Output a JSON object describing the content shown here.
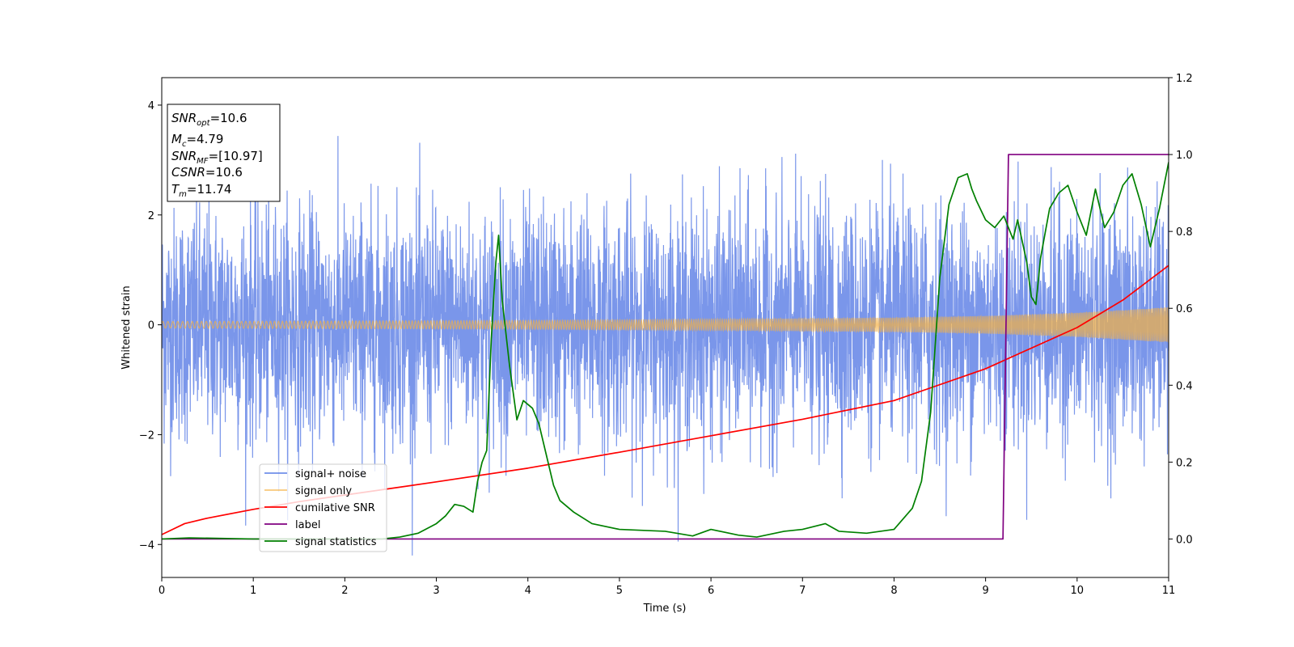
{
  "chart_data": {
    "type": "line",
    "xlabel": "Time (s)",
    "ylabel": "Whitened strain",
    "xlim": [
      0,
      11
    ],
    "ylim_left": [
      -4.6,
      4.5
    ],
    "ylim_right": [
      -0.1,
      1.2
    ],
    "x_ticks": [
      0,
      1,
      2,
      3,
      4,
      5,
      6,
      7,
      8,
      9,
      10,
      11
    ],
    "y_ticks_left": [
      -4,
      -2,
      0,
      2,
      4
    ],
    "y_ticks_right": [
      0.0,
      0.2,
      0.4,
      0.6,
      0.8,
      1.0,
      1.2
    ],
    "y_tick_labels_right": [
      "0.0",
      "0.2",
      "0.4",
      "0.6",
      "0.8",
      "1.0",
      "1.2"
    ],
    "grid": false,
    "legend_position": "bottom-left",
    "annotation": {
      "lines": [
        {
          "main": "SNR",
          "sub": "opt",
          "rest": "=10.6"
        },
        {
          "main": "M",
          "sub": "c",
          "rest": "=4.79"
        },
        {
          "main": "SNR",
          "sub": "MF",
          "rest": "=[10.97]"
        },
        {
          "main": "CSNR",
          "sub": "",
          "rest": "=10.6"
        },
        {
          "main": "T",
          "sub": "m",
          "rest": "=11.74"
        }
      ]
    },
    "series": [
      {
        "name": "signal+ noise",
        "color": "#4169e1",
        "axis": "left",
        "description_values": {
          "typical_envelope": [
            -2.2,
            2.2
          ],
          "spikes_range": [
            -4.2,
            4.0
          ]
        }
      },
      {
        "name": "signal only",
        "color": "#f5b041",
        "axis": "left",
        "envelope": {
          "x": [
            0,
            2,
            4,
            6,
            8,
            9,
            10,
            11
          ],
          "amp": [
            0.06,
            0.07,
            0.08,
            0.1,
            0.13,
            0.16,
            0.22,
            0.32
          ]
        }
      },
      {
        "name": "cumilative SNR",
        "color": "#ff0000",
        "axis": "left",
        "x": [
          0,
          0.25,
          0.5,
          1,
          1.5,
          2,
          3,
          4,
          5,
          6,
          7,
          8,
          9,
          10,
          10.5,
          11
        ],
        "y": [
          -3.82,
          -3.62,
          -3.52,
          -3.36,
          -3.22,
          -3.1,
          -2.86,
          -2.61,
          -2.32,
          -2.02,
          -1.72,
          -1.38,
          -0.8,
          -0.05,
          0.45,
          1.08
        ]
      },
      {
        "name": "label",
        "color": "#800080",
        "axis": "right",
        "x": [
          0,
          9.19,
          9.25,
          11
        ],
        "y": [
          0,
          0,
          1,
          1
        ]
      },
      {
        "name": "signal statistics",
        "color": "#008000",
        "axis": "right",
        "x": [
          0,
          0.3,
          1,
          2,
          2.4,
          2.6,
          2.8,
          3.0,
          3.1,
          3.2,
          3.3,
          3.4,
          3.45,
          3.5,
          3.55,
          3.6,
          3.65,
          3.68,
          3.72,
          3.8,
          3.88,
          3.95,
          4.05,
          4.12,
          4.2,
          4.28,
          4.35,
          4.5,
          4.7,
          5.0,
          5.5,
          5.8,
          6.0,
          6.3,
          6.5,
          6.8,
          7.0,
          7.25,
          7.4,
          7.7,
          8.0,
          8.2,
          8.3,
          8.4,
          8.5,
          8.6,
          8.7,
          8.8,
          8.85,
          8.9,
          9.0,
          9.1,
          9.2,
          9.3,
          9.35,
          9.45,
          9.5,
          9.55,
          9.6,
          9.7,
          9.8,
          9.9,
          10.0,
          10.1,
          10.2,
          10.3,
          10.4,
          10.5,
          10.6,
          10.7,
          10.8,
          10.9,
          11.0
        ],
        "y": [
          0.0,
          0.003,
          0.0,
          0.0,
          0.0,
          0.005,
          0.015,
          0.04,
          0.06,
          0.09,
          0.085,
          0.07,
          0.15,
          0.2,
          0.23,
          0.52,
          0.72,
          0.79,
          0.62,
          0.45,
          0.31,
          0.36,
          0.34,
          0.3,
          0.22,
          0.14,
          0.1,
          0.07,
          0.04,
          0.025,
          0.02,
          0.008,
          0.025,
          0.01,
          0.005,
          0.02,
          0.025,
          0.04,
          0.02,
          0.015,
          0.025,
          0.08,
          0.15,
          0.33,
          0.68,
          0.87,
          0.94,
          0.95,
          0.91,
          0.88,
          0.83,
          0.81,
          0.84,
          0.78,
          0.83,
          0.72,
          0.63,
          0.61,
          0.73,
          0.86,
          0.9,
          0.92,
          0.85,
          0.79,
          0.91,
          0.81,
          0.85,
          0.92,
          0.95,
          0.87,
          0.76,
          0.86,
          0.98
        ]
      }
    ]
  }
}
